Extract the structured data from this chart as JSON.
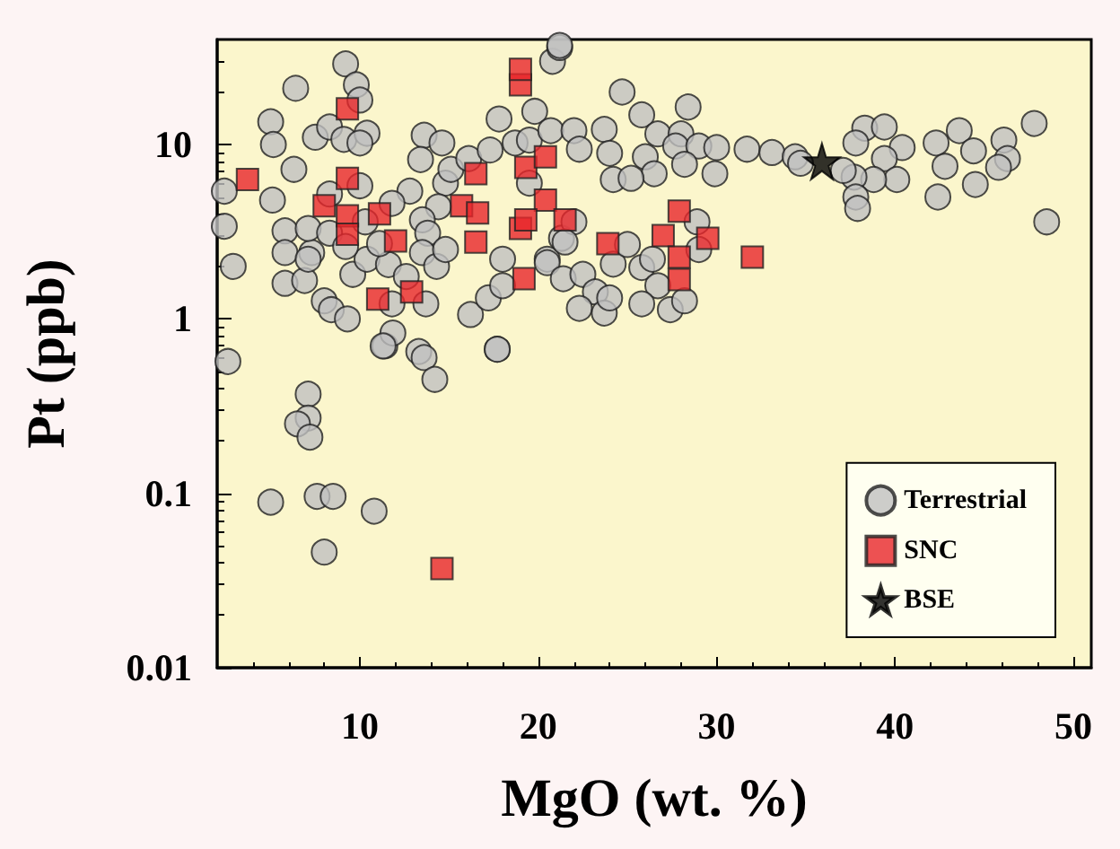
{
  "chart_data": {
    "type": "scatter",
    "xlabel": "MgO (wt. %)",
    "ylabel": "Pt (ppb)",
    "log": "y",
    "xlim": [
      2,
      51
    ],
    "xticks": [
      10,
      20,
      30,
      40,
      50
    ],
    "ylim": [
      0.01,
      40
    ],
    "yticks": [
      0.01,
      0.1,
      1,
      10
    ],
    "grid": false,
    "legend": "bottom right",
    "series": [
      {
        "name": "Terrestrial",
        "color": "#c0c0c0",
        "marker": "circle",
        "x": [
          9.2,
          6.4,
          9.8,
          10.0,
          5.0,
          5.15,
          7.5,
          8.3,
          9.1,
          10.4,
          10.0,
          6.3,
          2.4,
          5.1,
          2.4,
          2.9,
          5.8,
          5.8,
          5.8,
          6.9,
          7.3,
          7.1,
          8.3,
          8.3,
          10.0,
          9.6,
          8.0,
          8.4,
          9.3,
          10.4,
          11.6,
          11.1,
          10.3,
          12.8,
          11.8,
          13.6,
          14.6,
          13.4,
          14.8,
          14.4,
          13.5,
          13.8,
          13.5,
          14.3,
          13.7,
          11.8,
          11.4,
          11.85,
          13.3,
          16.2,
          17.2,
          18.0,
          18.0,
          17.7,
          17.8,
          18.7,
          19.8,
          19.5,
          20.7,
          20.8,
          21.2,
          15.1,
          16.1,
          17.3,
          19.5,
          21.3,
          20.5,
          14.8,
          12.6,
          7.1,
          9.2,
          2.6,
          7.1,
          7.1,
          6.5,
          7.2,
          5.0,
          7.6,
          8.5,
          10.8,
          8.0,
          13.6,
          14.2,
          11.3,
          17.7,
          21.2,
          24.7,
          28.4,
          25.8,
          22.0,
          23.7,
          26.7,
          28.0,
          22.3,
          24.0,
          26.0,
          27.7,
          29.0,
          30.0,
          31.7,
          33.1,
          34.4,
          34.7,
          28.2,
          26.5,
          24.2,
          25.2,
          29.9,
          22.0,
          21.5,
          20.5,
          21.4,
          22.5,
          23.2,
          22.3,
          23.7,
          24.0,
          24.2,
          25.0,
          25.8,
          26.7,
          25.8,
          27.4,
          28.2,
          26.4,
          29.0,
          28.9,
          38.3,
          39.4,
          37.8,
          40.4,
          42.3,
          43.6,
          44.4,
          46.1,
          47.8,
          46.3,
          45.8,
          44.5,
          42.8,
          42.4,
          39.4,
          40.1,
          38.8,
          37.7,
          37.8,
          37.9,
          37.1,
          48.5
        ],
        "values": [
          29,
          21,
          22,
          18,
          13.5,
          10,
          11,
          12.6,
          10.7,
          11.6,
          10.2,
          7.2,
          5.4,
          4.8,
          3.4,
          2.0,
          3.2,
          2.4,
          1.6,
          1.66,
          2.4,
          3.3,
          3.1,
          5.2,
          5.8,
          1.8,
          1.27,
          1.13,
          1.0,
          2.2,
          2.05,
          2.7,
          3.6,
          5.4,
          4.6,
          11.3,
          10.2,
          8.2,
          6.0,
          4.4,
          3.7,
          3.1,
          2.4,
          2.0,
          1.22,
          1.22,
          0.7,
          0.83,
          0.65,
          1.06,
          1.32,
          1.55,
          2.2,
          0.67,
          14,
          10.2,
          15.5,
          10.6,
          12,
          30,
          36,
          7.2,
          8.3,
          9.3,
          6.0,
          2.9,
          2.2,
          2.5,
          1.75,
          2.2,
          2.6,
          0.57,
          0.37,
          0.27,
          0.25,
          0.21,
          0.089,
          0.096,
          0.096,
          0.079,
          0.046,
          0.6,
          0.45,
          0.7,
          0.67,
          37,
          20,
          16.4,
          14.8,
          12,
          12.2,
          11.5,
          11.5,
          9.4,
          8.9,
          8.5,
          9.8,
          9.8,
          9.6,
          9.4,
          9.0,
          8.5,
          7.8,
          7.7,
          6.8,
          6.3,
          6.4,
          6.8,
          3.6,
          2.76,
          2.1,
          1.7,
          1.8,
          1.43,
          1.15,
          1.08,
          1.32,
          2.06,
          2.67,
          1.97,
          1.55,
          1.22,
          1.13,
          1.27,
          2.2,
          2.5,
          3.6,
          12.4,
          12.6,
          10.2,
          9.6,
          10.2,
          12,
          9.2,
          10.6,
          13.2,
          8.3,
          7.4,
          5.9,
          7.5,
          5.0,
          8.3,
          6.3,
          6.3,
          6.5,
          5.0,
          4.3,
          7.1,
          3.6
        ]
      },
      {
        "name": "SNC",
        "color": "#e8262a",
        "marker": "square",
        "x": [
          3.7,
          9.3,
          9.3,
          9.3,
          9.3,
          8.0,
          11.1,
          12.0,
          11.0,
          12.9,
          16.5,
          15.7,
          16.6,
          16.5,
          19.0,
          19.0,
          19.3,
          20.4,
          20.4,
          19.0,
          19.3,
          19.2,
          21.5,
          23.9,
          27.0,
          27.9,
          29.5,
          27.9,
          27.9,
          32.0,
          14.6
        ],
        "values": [
          6.3,
          16,
          6.4,
          3.9,
          3.06,
          4.45,
          4.0,
          2.8,
          1.3,
          1.43,
          6.8,
          4.45,
          4.05,
          2.76,
          22,
          27,
          7.4,
          8.5,
          4.8,
          3.3,
          3.7,
          1.7,
          3.7,
          2.7,
          3.0,
          4.15,
          2.9,
          2.26,
          1.68,
          2.26,
          0.037
        ]
      },
      {
        "name": "BSE",
        "color": "#000000",
        "marker": "star",
        "x": [
          35.9
        ],
        "values": [
          8.0
        ]
      }
    ]
  }
}
